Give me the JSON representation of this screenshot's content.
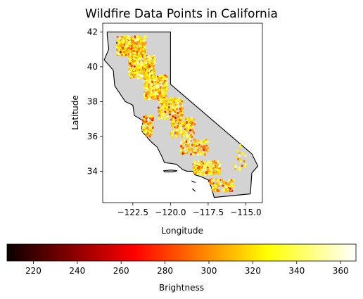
{
  "chart_data": {
    "type": "scatter",
    "title": "Wildfire Data Points in California",
    "xlabel": "Longitude",
    "ylabel": "Latitude",
    "xlim": [
      -124.5,
      -113.9
    ],
    "ylim": [
      32.2,
      42.5
    ],
    "xticks": [
      -122.5,
      -120.0,
      -117.5,
      -115.0
    ],
    "xtick_labels": [
      "−122.5",
      "−120.0",
      "−117.5",
      "−115.0"
    ],
    "yticks": [
      34,
      36,
      38,
      40,
      42
    ],
    "ytick_labels": [
      "34",
      "36",
      "38",
      "40",
      "42"
    ],
    "colorbar": {
      "label": "Brightness",
      "range": [
        208,
        367
      ],
      "colormap": "hot",
      "ticks": [
        220,
        240,
        260,
        280,
        300,
        320,
        340,
        360
      ],
      "tick_labels": [
        "220",
        "240",
        "260",
        "280",
        "300",
        "320",
        "340",
        "360"
      ]
    },
    "colors": {
      "land": "#d3d3d3",
      "outline": "#000000"
    },
    "california_outline": [
      [
        -124.2,
        42.0
      ],
      [
        -120.0,
        42.0
      ],
      [
        -120.0,
        39.0
      ],
      [
        -114.6,
        35.0
      ],
      [
        -114.2,
        34.3
      ],
      [
        -114.6,
        33.9
      ],
      [
        -114.7,
        32.7
      ],
      [
        -117.1,
        32.5
      ],
      [
        -117.3,
        33.1
      ],
      [
        -117.5,
        33.5
      ],
      [
        -118.0,
        33.7
      ],
      [
        -118.4,
        33.8
      ],
      [
        -118.5,
        34.0
      ],
      [
        -118.9,
        34.0
      ],
      [
        -119.2,
        34.1
      ],
      [
        -119.6,
        34.4
      ],
      [
        -120.4,
        34.5
      ],
      [
        -120.6,
        34.9
      ],
      [
        -120.9,
        35.4
      ],
      [
        -121.3,
        35.7
      ],
      [
        -121.9,
        36.3
      ],
      [
        -121.9,
        36.6
      ],
      [
        -121.8,
        36.9
      ],
      [
        -122.4,
        37.2
      ],
      [
        -122.5,
        37.8
      ],
      [
        -123.0,
        38.0
      ],
      [
        -123.7,
        38.9
      ],
      [
        -123.8,
        39.8
      ],
      [
        -124.4,
        40.4
      ],
      [
        -124.1,
        41.0
      ],
      [
        -124.2,
        41.8
      ],
      [
        -124.2,
        42.0
      ]
    ],
    "islands": [
      [
        [
          -120.45,
          34.03
        ],
        [
          -119.95,
          34.07
        ],
        [
          -119.55,
          34.03
        ],
        [
          -119.85,
          33.97
        ],
        [
          -120.4,
          33.97
        ]
      ],
      [
        [
          -118.6,
          33.45
        ],
        [
          -118.35,
          33.35
        ],
        [
          -118.55,
          33.42
        ]
      ],
      [
        [
          -118.55,
          33.0
        ],
        [
          -118.35,
          32.85
        ],
        [
          -118.5,
          32.95
        ]
      ]
    ],
    "point_clusters": [
      {
        "lon_center": -122.6,
        "lat_center": 41.2,
        "lon_spread": 0.95,
        "lat_spread": 0.55,
        "count": 420,
        "brightness_mean": 318,
        "brightness_sd": 22
      },
      {
        "lon_center": -121.9,
        "lat_center": 40.0,
        "lon_spread": 0.85,
        "lat_spread": 0.65,
        "count": 380,
        "brightness_mean": 320,
        "brightness_sd": 22
      },
      {
        "lon_center": -121.0,
        "lat_center": 38.8,
        "lon_spread": 0.75,
        "lat_spread": 0.7,
        "count": 300,
        "brightness_mean": 322,
        "brightness_sd": 22
      },
      {
        "lon_center": -120.0,
        "lat_center": 37.6,
        "lon_spread": 0.8,
        "lat_spread": 0.6,
        "count": 200,
        "brightness_mean": 320,
        "brightness_sd": 22
      },
      {
        "lon_center": -119.2,
        "lat_center": 36.5,
        "lon_spread": 0.8,
        "lat_spread": 0.55,
        "count": 150,
        "brightness_mean": 318,
        "brightness_sd": 22
      },
      {
        "lon_center": -118.4,
        "lat_center": 35.4,
        "lon_spread": 0.9,
        "lat_spread": 0.45,
        "count": 110,
        "brightness_mean": 316,
        "brightness_sd": 22
      },
      {
        "lon_center": -117.6,
        "lat_center": 34.2,
        "lon_spread": 0.9,
        "lat_spread": 0.4,
        "count": 180,
        "brightness_mean": 318,
        "brightness_sd": 22
      },
      {
        "lon_center": -116.6,
        "lat_center": 33.2,
        "lon_spread": 0.8,
        "lat_spread": 0.35,
        "count": 90,
        "brightness_mean": 318,
        "brightness_sd": 22
      },
      {
        "lon_center": -121.5,
        "lat_center": 36.6,
        "lon_spread": 0.35,
        "lat_spread": 0.6,
        "count": 70,
        "brightness_mean": 316,
        "brightness_sd": 22
      },
      {
        "lon_center": -115.4,
        "lat_center": 34.8,
        "lon_spread": 0.4,
        "lat_spread": 0.8,
        "count": 25,
        "brightness_mean": 318,
        "brightness_sd": 22
      }
    ],
    "grid": false
  }
}
